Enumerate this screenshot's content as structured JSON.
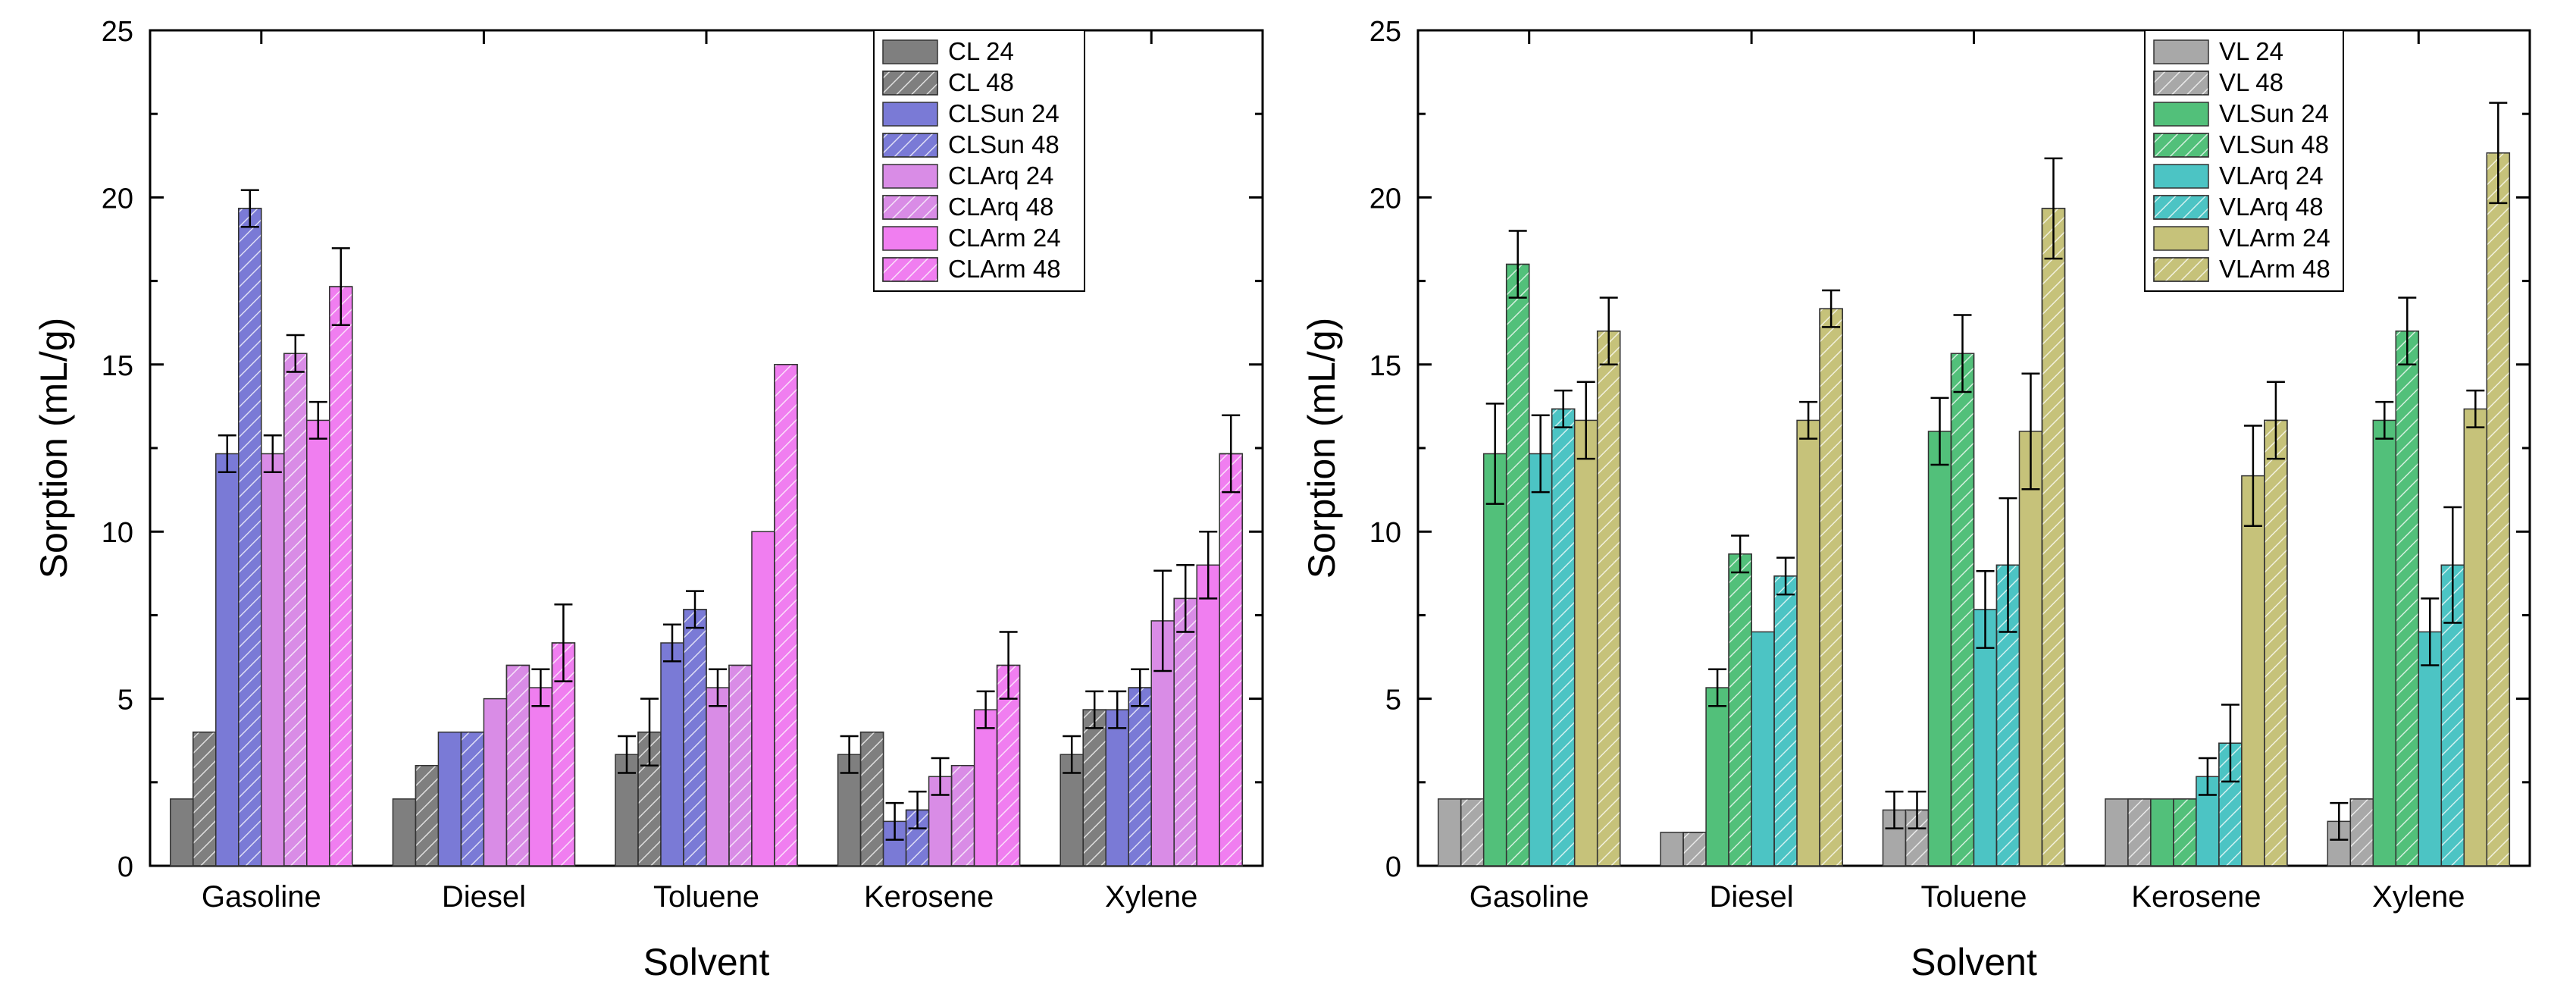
{
  "chart_data": [
    {
      "type": "bar",
      "title": "",
      "xlabel": "Solvent",
      "ylabel": "Sorption (mL/g)",
      "ylim": [
        0,
        25
      ],
      "yticks": [
        0,
        5,
        10,
        15,
        20,
        25
      ],
      "legend_position": "top-right",
      "categories": [
        "Gasoline",
        "Diesel",
        "Toluene",
        "Kerosene",
        "Xylene"
      ],
      "series": [
        {
          "name": "CL 24",
          "color": "#7f7f7f",
          "hatch": false,
          "values": [
            2.0,
            2.0,
            3.33,
            3.33,
            3.33
          ],
          "errors": [
            0,
            0,
            0.55,
            0.55,
            0.55
          ]
        },
        {
          "name": "CL 48",
          "color": "#7f7f7f",
          "hatch": true,
          "values": [
            4.0,
            3.0,
            4.0,
            4.0,
            4.67
          ],
          "errors": [
            0,
            0,
            1.0,
            0,
            0.55
          ]
        },
        {
          "name": "CLSun 24",
          "color": "#7a7ad6",
          "hatch": false,
          "values": [
            12.33,
            4.0,
            6.67,
            1.33,
            4.67
          ],
          "errors": [
            0.55,
            0,
            0.55,
            0.55,
            0.55
          ]
        },
        {
          "name": "CLSun 48",
          "color": "#7a7ad6",
          "hatch": true,
          "values": [
            19.67,
            4.0,
            7.67,
            1.67,
            5.33
          ],
          "errors": [
            0.55,
            0,
            0.55,
            0.55,
            0.55
          ]
        },
        {
          "name": "CLArq 24",
          "color": "#d98ce6",
          "hatch": false,
          "values": [
            12.33,
            5.0,
            5.33,
            2.67,
            7.33
          ],
          "errors": [
            0.55,
            0,
            0.55,
            0.55,
            1.5
          ]
        },
        {
          "name": "CLArq 48",
          "color": "#d98ce6",
          "hatch": true,
          "values": [
            15.33,
            6.0,
            6.0,
            3.0,
            8.0
          ],
          "errors": [
            0.55,
            0,
            0,
            0,
            1.0
          ]
        },
        {
          "name": "CLArm 24",
          "color": "#f07ef0",
          "hatch": false,
          "values": [
            13.33,
            5.33,
            10.0,
            4.67,
            9.0
          ],
          "errors": [
            0.55,
            0.55,
            0,
            0.55,
            1.0
          ]
        },
        {
          "name": "CLArm 48",
          "color": "#f07ef0",
          "hatch": true,
          "values": [
            17.33,
            6.67,
            15.0,
            6.0,
            12.33
          ],
          "errors": [
            1.15,
            1.15,
            0,
            1.0,
            1.15
          ]
        }
      ]
    },
    {
      "type": "bar",
      "title": "",
      "xlabel": "Solvent",
      "ylabel": "Sorption (mL/g)",
      "ylim": [
        0,
        25
      ],
      "yticks": [
        0,
        5,
        10,
        15,
        20,
        25
      ],
      "legend_position": "top-center",
      "categories": [
        "Gasoline",
        "Diesel",
        "Toluene",
        "Kerosene",
        "Xylene"
      ],
      "series": [
        {
          "name": "VL 24",
          "color": "#a8a8a8",
          "hatch": false,
          "values": [
            2.0,
            1.0,
            1.67,
            2.0,
            1.33
          ],
          "errors": [
            0,
            0,
            0.55,
            0,
            0.55
          ]
        },
        {
          "name": "VL 48",
          "color": "#a8a8a8",
          "hatch": true,
          "values": [
            2.0,
            1.0,
            1.67,
            2.0,
            2.0
          ],
          "errors": [
            0,
            0,
            0.55,
            0,
            0
          ]
        },
        {
          "name": "VLSun 24",
          "color": "#52c07a",
          "hatch": false,
          "values": [
            12.33,
            5.33,
            13.0,
            2.0,
            13.33
          ],
          "errors": [
            1.5,
            0.55,
            1.0,
            0,
            0.55
          ]
        },
        {
          "name": "VLSun 48",
          "color": "#52c07a",
          "hatch": true,
          "values": [
            18.0,
            9.33,
            15.33,
            2.0,
            16.0
          ],
          "errors": [
            1.0,
            0.55,
            1.15,
            0,
            1.0
          ]
        },
        {
          "name": "VLArq 24",
          "color": "#4cc4c4",
          "hatch": false,
          "values": [
            12.33,
            7.0,
            7.67,
            2.67,
            7.0
          ],
          "errors": [
            1.15,
            0,
            1.15,
            0.55,
            1.0
          ]
        },
        {
          "name": "VLArq 48",
          "color": "#4cc4c4",
          "hatch": true,
          "values": [
            13.67,
            8.67,
            9.0,
            3.67,
            9.0
          ],
          "errors": [
            0.55,
            0.55,
            2.0,
            1.15,
            1.73
          ]
        },
        {
          "name": "VLArm 24",
          "color": "#c6c27a",
          "hatch": false,
          "values": [
            13.33,
            13.33,
            13.0,
            11.67,
            13.67
          ],
          "errors": [
            1.15,
            0.55,
            1.73,
            1.5,
            0.55
          ]
        },
        {
          "name": "VLArm 48",
          "color": "#c6c27a",
          "hatch": true,
          "values": [
            16.0,
            16.67,
            19.67,
            13.33,
            21.33
          ],
          "errors": [
            1.0,
            0.55,
            1.5,
            1.15,
            1.5
          ]
        }
      ]
    }
  ]
}
